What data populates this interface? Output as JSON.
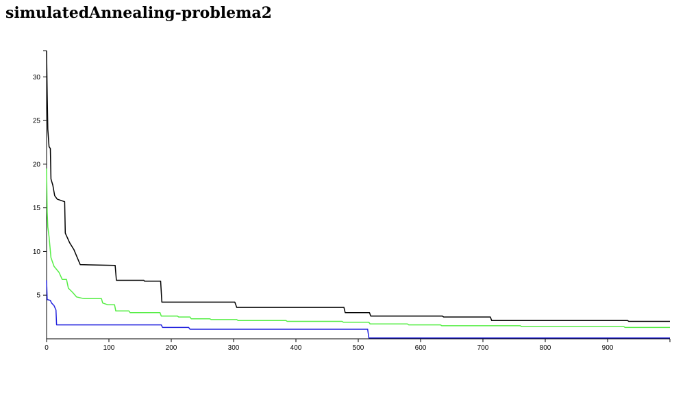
{
  "page_title": "simulatedAnnealing-problema2",
  "chart_data": {
    "type": "line",
    "title": "simulatedAnnealing-problema2",
    "xlabel": "",
    "ylabel": "",
    "xlim": [
      0,
      1000
    ],
    "ylim": [
      0,
      33
    ],
    "grid": false,
    "x_ticks": [
      0,
      100,
      200,
      300,
      400,
      500,
      600,
      700,
      800,
      900
    ],
    "y_ticks": [
      5,
      10,
      15,
      20,
      25,
      30
    ],
    "series": [
      {
        "name": "black",
        "color": "#000000",
        "points": [
          [
            0,
            33
          ],
          [
            1,
            28
          ],
          [
            2,
            24
          ],
          [
            4,
            22
          ],
          [
            6,
            21.8
          ],
          [
            7,
            18.3
          ],
          [
            10,
            17.6
          ],
          [
            13,
            16.4
          ],
          [
            17,
            16
          ],
          [
            29,
            15.7
          ],
          [
            30,
            12.1
          ],
          [
            37,
            11
          ],
          [
            44,
            10.2
          ],
          [
            54,
            8.5
          ],
          [
            110,
            8.4
          ],
          [
            112,
            6.7
          ],
          [
            156,
            6.7
          ],
          [
            157,
            6.6
          ],
          [
            183,
            6.6
          ],
          [
            185,
            4.2
          ],
          [
            302,
            4.2
          ],
          [
            305,
            3.6
          ],
          [
            477,
            3.6
          ],
          [
            479,
            3
          ],
          [
            518,
            3
          ],
          [
            520,
            2.6
          ],
          [
            635,
            2.6
          ],
          [
            637,
            2.5
          ],
          [
            712,
            2.5
          ],
          [
            714,
            2.1
          ],
          [
            932,
            2.1
          ],
          [
            934,
            2
          ],
          [
            1000,
            2
          ]
        ]
      },
      {
        "name": "green",
        "color": "#55ee44",
        "points": [
          [
            0,
            19.5
          ],
          [
            1,
            14.5
          ],
          [
            2,
            12.8
          ],
          [
            4,
            11.7
          ],
          [
            7,
            9.3
          ],
          [
            12,
            8.3
          ],
          [
            20,
            7.6
          ],
          [
            25,
            6.8
          ],
          [
            32,
            6.8
          ],
          [
            35,
            5.8
          ],
          [
            42,
            5.3
          ],
          [
            48,
            4.8
          ],
          [
            60,
            4.6
          ],
          [
            88,
            4.6
          ],
          [
            90,
            4.1
          ],
          [
            98,
            3.9
          ],
          [
            109,
            3.9
          ],
          [
            111,
            3.2
          ],
          [
            132,
            3.2
          ],
          [
            134,
            3
          ],
          [
            182,
            3
          ],
          [
            184,
            2.6
          ],
          [
            210,
            2.6
          ],
          [
            212,
            2.5
          ],
          [
            230,
            2.5
          ],
          [
            232,
            2.3
          ],
          [
            262,
            2.3
          ],
          [
            264,
            2.2
          ],
          [
            305,
            2.2
          ],
          [
            307,
            2.1
          ],
          [
            384,
            2.1
          ],
          [
            386,
            2
          ],
          [
            474,
            2
          ],
          [
            476,
            1.9
          ],
          [
            517,
            1.9
          ],
          [
            519,
            1.7
          ],
          [
            579,
            1.7
          ],
          [
            581,
            1.6
          ],
          [
            632,
            1.6
          ],
          [
            634,
            1.5
          ],
          [
            760,
            1.5
          ],
          [
            762,
            1.4
          ],
          [
            926,
            1.4
          ],
          [
            928,
            1.3
          ],
          [
            1000,
            1.3
          ]
        ]
      },
      {
        "name": "blue",
        "color": "#2222dd",
        "points": [
          [
            0,
            6.7
          ],
          [
            1,
            4.5
          ],
          [
            6,
            4.4
          ],
          [
            8,
            4.1
          ],
          [
            12,
            3.8
          ],
          [
            15,
            3.3
          ],
          [
            16,
            1.6
          ],
          [
            184,
            1.6
          ],
          [
            186,
            1.3
          ],
          [
            228,
            1.3
          ],
          [
            230,
            1.1
          ],
          [
            515,
            1.1
          ],
          [
            517,
            0.1
          ],
          [
            1000,
            0.1
          ]
        ]
      }
    ]
  }
}
